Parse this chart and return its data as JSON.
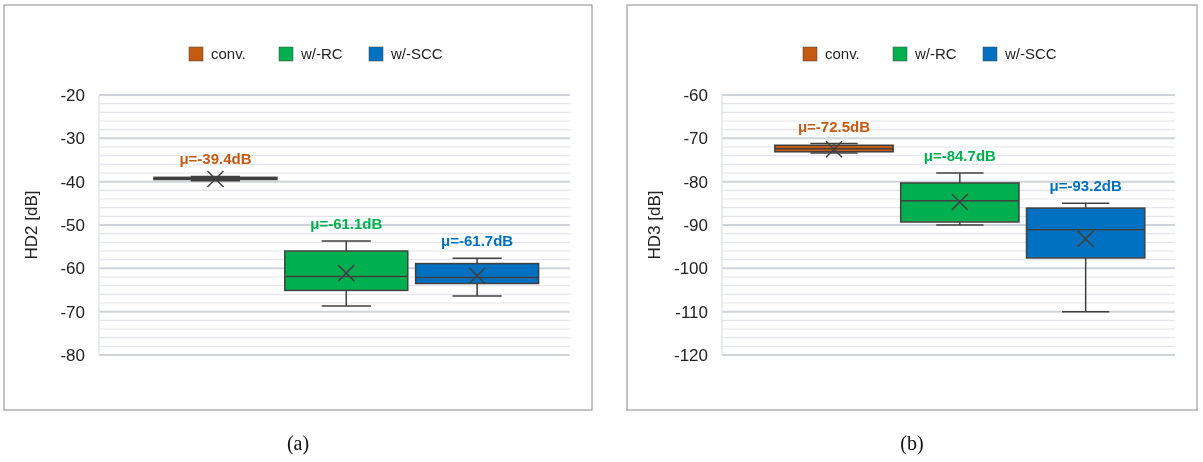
{
  "chart_data": [
    {
      "type": "box",
      "ylabel": "HD2 [dB]",
      "categories": [
        null
      ],
      "ylim": [
        -80,
        -20
      ],
      "yticks": [
        -20,
        {
          "value": -22,
          "label": null
        },
        {
          "value": -24,
          "label": null
        },
        {
          "value": -26,
          "label": null
        },
        {
          "value": -28,
          "label": null
        },
        -30,
        {
          "value": -32,
          "label": null
        },
        {
          "value": -34,
          "label": null
        },
        {
          "value": -36,
          "label": null
        },
        {
          "value": -38,
          "label": null
        },
        -40,
        {
          "value": -42,
          "label": null
        },
        {
          "value": -44,
          "label": null
        },
        {
          "value": -46,
          "label": null
        },
        {
          "value": -48,
          "label": null
        },
        -50,
        {
          "value": -52,
          "label": null
        },
        {
          "value": -54,
          "label": null
        },
        {
          "value": -56,
          "label": null
        },
        {
          "value": -58,
          "label": null
        },
        -60,
        {
          "value": -62,
          "label": null
        },
        {
          "value": -64,
          "label": null
        },
        {
          "value": -66,
          "label": null
        },
        {
          "value": -68,
          "label": null
        },
        -70,
        {
          "value": -72,
          "label": null
        },
        {
          "value": -74,
          "label": null
        },
        {
          "value": -76,
          "label": null
        },
        {
          "value": -78,
          "label": null
        },
        -80
      ],
      "grid": "y",
      "legend": "top",
      "marker": "cross",
      "annotations": [
        "(a)"
      ],
      "series": [
        {
          "name": "conv.",
          "color": "#c55a11",
          "boxes": [
            {
              "low": -39.8,
              "q1": -39.5,
              "median": -39.3,
              "q3": -39.0,
              "high": -38.8,
              "mean": -39.4
            }
          ],
          "value_labels": [
            "μ=-39.4dB"
          ]
        },
        {
          "name": "w/-RC",
          "color": "#00b050",
          "boxes": [
            {
              "low": -68.7,
              "q1": -65.1,
              "median": -61.9,
              "q3": -56.0,
              "high": -53.7,
              "mean": -61.1
            }
          ],
          "value_labels": [
            "μ=-61.1dB"
          ]
        },
        {
          "name": "w/-SCC",
          "color": "#0070c0",
          "boxes": [
            {
              "low": -66.4,
              "q1": -63.5,
              "median": -62.1,
              "q3": -58.9,
              "high": -57.7,
              "mean": -61.7
            }
          ],
          "value_labels": [
            "μ=-61.7dB"
          ]
        }
      ]
    },
    {
      "type": "box",
      "ylabel": "HD3 [dB]",
      "categories": [
        null
      ],
      "ylim": [
        -120,
        -60
      ],
      "yticks": [
        -60,
        {
          "value": -62,
          "label": null
        },
        {
          "value": -64,
          "label": null
        },
        {
          "value": -66,
          "label": null
        },
        {
          "value": -68,
          "label": null
        },
        -70,
        {
          "value": -72,
          "label": null
        },
        {
          "value": -74,
          "label": null
        },
        {
          "value": -76,
          "label": null
        },
        {
          "value": -78,
          "label": null
        },
        -80,
        {
          "value": -82,
          "label": null
        },
        {
          "value": -84,
          "label": null
        },
        {
          "value": -86,
          "label": null
        },
        {
          "value": -88,
          "label": null
        },
        -90,
        {
          "value": -92,
          "label": null
        },
        {
          "value": -94,
          "label": null
        },
        {
          "value": -96,
          "label": null
        },
        {
          "value": -98,
          "label": null
        },
        -100,
        {
          "value": -102,
          "label": null
        },
        {
          "value": -104,
          "label": null
        },
        {
          "value": -106,
          "label": null
        },
        {
          "value": -108,
          "label": null
        },
        -110,
        {
          "value": -112,
          "label": null
        },
        {
          "value": -114,
          "label": null
        },
        {
          "value": -116,
          "label": null
        },
        {
          "value": -118,
          "label": null
        },
        -120
      ],
      "grid": "y",
      "legend": "top",
      "marker": "cross",
      "annotations": [
        "(b)"
      ],
      "series": [
        {
          "name": "conv.",
          "color": "#c55a11",
          "boxes": [
            {
              "low": -73.4,
              "q1": -73.1,
              "median": -72.4,
              "q3": -71.6,
              "high": -71.2,
              "mean": -72.5
            }
          ],
          "value_labels": [
            "μ=-72.5dB"
          ]
        },
        {
          "name": "w/-RC",
          "color": "#00b050",
          "boxes": [
            {
              "low": -90.0,
              "q1": -89.3,
              "median": -84.4,
              "q3": -80.3,
              "high": -78.0,
              "mean": -84.7
            }
          ],
          "value_labels": [
            "μ=-84.7dB"
          ]
        },
        {
          "name": "w/-SCC",
          "color": "#0070c0",
          "boxes": [
            {
              "low": -110.0,
              "q1": -97.6,
              "median": -91.1,
              "q3": -86.1,
              "high": -85.0,
              "mean": -93.2
            }
          ],
          "value_labels": [
            "μ=-93.2dB"
          ]
        }
      ]
    }
  ]
}
